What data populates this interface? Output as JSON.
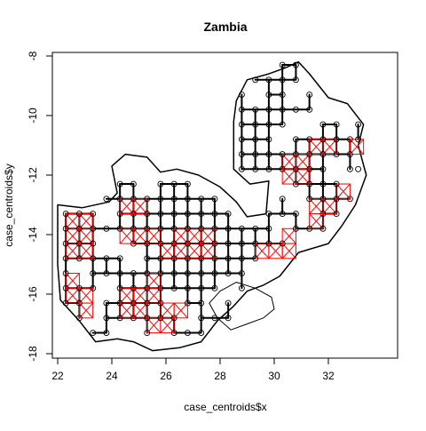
{
  "chart_data": {
    "type": "scatter",
    "title": "Zambia",
    "xlabel": "case_centroids$x",
    "ylabel": "case_centroids$y",
    "xlim": [
      22,
      34
    ],
    "ylim": [
      -18,
      -8
    ],
    "x_ticks": [
      22,
      24,
      26,
      28,
      30,
      32
    ],
    "y_ticks": [
      -18,
      -16,
      -14,
      -12,
      -10,
      -8
    ],
    "box": true,
    "grid": false,
    "legend": "none",
    "point_symbol": "open-circle",
    "colors": {
      "points": "#000000",
      "country_boundary": "#000000",
      "network_links": "#000000",
      "grid_links": "#ff0000"
    },
    "outline": [
      [
        22.0,
        -13.0
      ],
      [
        22.9,
        -13.1
      ],
      [
        23.9,
        -12.9
      ],
      [
        24.2,
        -12.6
      ],
      [
        24.0,
        -11.7
      ],
      [
        24.5,
        -11.3
      ],
      [
        25.3,
        -11.4
      ],
      [
        25.8,
        -11.9
      ],
      [
        26.4,
        -11.8
      ],
      [
        27.2,
        -12.0
      ],
      [
        28.0,
        -12.4
      ],
      [
        28.6,
        -12.9
      ],
      [
        29.0,
        -13.4
      ],
      [
        29.7,
        -13.3
      ],
      [
        29.8,
        -12.2
      ],
      [
        29.1,
        -12.3
      ],
      [
        28.5,
        -11.8
      ],
      [
        28.5,
        -10.2
      ],
      [
        28.6,
        -9.5
      ],
      [
        29.0,
        -8.8
      ],
      [
        29.8,
        -8.6
      ],
      [
        30.4,
        -8.4
      ],
      [
        30.9,
        -8.2
      ],
      [
        31.3,
        -8.6
      ],
      [
        32.0,
        -9.4
      ],
      [
        32.7,
        -9.6
      ],
      [
        33.3,
        -10.3
      ],
      [
        33.1,
        -11.0
      ],
      [
        33.4,
        -12.0
      ],
      [
        33.0,
        -13.0
      ],
      [
        32.5,
        -13.7
      ],
      [
        32.0,
        -14.3
      ],
      [
        30.9,
        -14.6
      ],
      [
        30.2,
        -15.4
      ],
      [
        29.6,
        -15.7
      ],
      [
        29.0,
        -15.9
      ],
      [
        28.5,
        -16.4
      ],
      [
        27.9,
        -16.9
      ],
      [
        27.3,
        -17.6
      ],
      [
        26.5,
        -17.8
      ],
      [
        25.5,
        -17.9
      ],
      [
        24.8,
        -17.6
      ],
      [
        24.2,
        -17.5
      ],
      [
        23.4,
        -17.6
      ],
      [
        22.8,
        -16.9
      ],
      [
        22.1,
        -16.2
      ],
      [
        22.0,
        -15.0
      ],
      [
        22.0,
        -13.0
      ]
    ],
    "extra_region": [
      [
        28.0,
        -15.9
      ],
      [
        28.6,
        -15.6
      ],
      [
        29.3,
        -15.8
      ],
      [
        29.9,
        -16.1
      ],
      [
        30.0,
        -16.5
      ],
      [
        29.6,
        -16.8
      ],
      [
        29.0,
        -17.0
      ],
      [
        28.4,
        -17.2
      ],
      [
        27.9,
        -16.8
      ],
      [
        27.6,
        -16.3
      ],
      [
        28.0,
        -15.9
      ]
    ],
    "x": [
      22.3,
      22.3,
      22.3,
      22.3,
      22.3,
      22.3,
      22.3,
      22.8,
      22.8,
      22.8,
      22.8,
      22.8,
      22.8,
      22.8,
      23.3,
      23.3,
      23.3,
      23.3,
      23.3,
      23.3,
      23.3,
      23.8,
      23.8,
      23.8,
      23.8,
      23.8,
      23.8,
      23.8,
      24.3,
      24.3,
      24.3,
      24.3,
      24.3,
      24.3,
      24.3,
      24.3,
      24.3,
      24.8,
      24.8,
      24.8,
      24.8,
      24.8,
      24.8,
      24.8,
      24.8,
      24.8,
      25.3,
      25.3,
      25.3,
      25.3,
      25.3,
      25.3,
      25.3,
      25.3,
      25.3,
      25.3,
      25.8,
      25.8,
      25.8,
      25.8,
      25.8,
      25.8,
      25.8,
      25.8,
      25.8,
      25.8,
      26.3,
      26.3,
      26.3,
      26.3,
      26.3,
      26.3,
      26.3,
      26.3,
      26.3,
      26.3,
      26.8,
      26.8,
      26.8,
      26.8,
      26.8,
      26.8,
      26.8,
      26.8,
      26.8,
      26.8,
      27.3,
      27.3,
      27.3,
      27.3,
      27.3,
      27.3,
      27.3,
      27.3,
      27.3,
      27.3,
      27.8,
      27.8,
      27.8,
      27.8,
      27.8,
      27.8,
      27.8,
      27.8,
      28.3,
      28.3,
      28.3,
      28.3,
      28.3,
      28.3,
      28.3,
      28.8,
      28.8,
      28.8,
      28.8,
      28.8,
      28.8,
      28.8,
      28.8,
      28.8,
      28.8,
      28.8,
      29.3,
      29.3,
      29.3,
      29.3,
      29.3,
      29.3,
      29.3,
      29.3,
      29.3,
      29.8,
      29.8,
      29.8,
      29.8,
      29.8,
      29.8,
      29.8,
      29.8,
      29.8,
      29.8,
      30.3,
      30.3,
      30.3,
      30.3,
      30.3,
      30.3,
      30.3,
      30.3,
      30.3,
      30.3,
      30.8,
      30.8,
      30.8,
      30.8,
      30.8,
      30.8,
      30.8,
      30.8,
      30.8,
      31.3,
      31.3,
      31.3,
      31.3,
      31.3,
      31.3,
      31.3,
      31.3,
      31.8,
      31.8,
      31.8,
      31.8,
      31.8,
      31.8,
      31.8,
      31.8,
      32.3,
      32.3,
      32.3,
      32.3,
      32.3,
      32.3,
      32.8,
      32.8,
      32.8,
      32.8,
      33.1,
      33.1,
      33.1
    ],
    "y": [
      -13.3,
      -13.8,
      -14.3,
      -14.8,
      -15.3,
      -15.8,
      -16.3,
      -13.3,
      -13.8,
      -14.3,
      -14.8,
      -15.8,
      -16.3,
      -16.8,
      -13.3,
      -13.8,
      -14.3,
      -14.8,
      -15.3,
      -15.8,
      -17.3,
      -12.8,
      -13.8,
      -14.8,
      -15.3,
      -16.3,
      -16.8,
      -17.3,
      -12.3,
      -12.8,
      -13.3,
      -13.8,
      -14.8,
      -15.3,
      -15.8,
      -16.3,
      -16.8,
      -12.3,
      -12.8,
      -13.3,
      -13.8,
      -14.3,
      -15.3,
      -15.8,
      -16.3,
      -16.8,
      -12.8,
      -13.3,
      -13.8,
      -14.3,
      -14.8,
      -15.3,
      -15.8,
      -16.3,
      -16.8,
      -17.3,
      -12.3,
      -12.8,
      -13.3,
      -13.8,
      -14.3,
      -14.8,
      -15.3,
      -15.8,
      -16.3,
      -16.8,
      -12.3,
      -12.8,
      -13.3,
      -13.8,
      -14.3,
      -14.8,
      -15.3,
      -15.8,
      -16.8,
      -17.3,
      -12.3,
      -12.8,
      -13.3,
      -13.8,
      -14.3,
      -14.8,
      -15.3,
      -15.8,
      -16.3,
      -17.3,
      -12.8,
      -13.3,
      -13.8,
      -14.3,
      -14.8,
      -15.3,
      -15.8,
      -16.3,
      -16.8,
      -17.3,
      -12.8,
      -13.3,
      -13.8,
      -14.3,
      -14.8,
      -15.3,
      -15.8,
      -16.8,
      -13.3,
      -13.8,
      -14.3,
      -14.8,
      -15.3,
      -16.3,
      -16.8,
      -9.3,
      -9.8,
      -10.3,
      -10.8,
      -11.3,
      -11.8,
      -13.8,
      -14.3,
      -14.8,
      -15.3,
      -15.8,
      -8.8,
      -9.8,
      -10.3,
      -10.8,
      -11.3,
      -11.8,
      -13.8,
      -14.3,
      -14.8,
      -8.8,
      -9.3,
      -9.8,
      -10.3,
      -10.8,
      -11.3,
      -11.8,
      -13.3,
      -13.8,
      -14.3,
      -8.3,
      -8.8,
      -9.3,
      -9.8,
      -10.3,
      -11.3,
      -11.8,
      -12.8,
      -13.3,
      -14.3,
      -8.3,
      -8.8,
      -9.8,
      -10.8,
      -11.3,
      -11.8,
      -12.3,
      -13.3,
      -13.8,
      -9.3,
      -9.8,
      -10.8,
      -11.3,
      -11.8,
      -12.3,
      -12.8,
      -13.8,
      -10.3,
      -10.8,
      -11.3,
      -11.8,
      -12.3,
      -12.8,
      -13.3,
      -13.8,
      -10.3,
      -10.8,
      -11.3,
      -12.3,
      -12.8,
      -13.3,
      -10.8,
      -11.3,
      -11.8,
      -12.8,
      -10.3,
      -10.8,
      -11.8
    ],
    "dense_red_cells": [
      [
        22.3,
        -13.3
      ],
      [
        22.3,
        -13.8
      ],
      [
        22.3,
        -14.3
      ],
      [
        22.8,
        -13.3
      ],
      [
        22.8,
        -13.8
      ],
      [
        22.8,
        -14.3
      ],
      [
        22.3,
        -15.3
      ],
      [
        22.3,
        -15.8
      ],
      [
        22.8,
        -15.8
      ],
      [
        22.8,
        -16.3
      ],
      [
        24.3,
        -12.8
      ],
      [
        24.8,
        -12.8
      ],
      [
        24.3,
        -13.8
      ],
      [
        24.8,
        -13.8
      ],
      [
        25.3,
        -13.8
      ],
      [
        24.3,
        -15.8
      ],
      [
        24.8,
        -15.8
      ],
      [
        24.3,
        -16.3
      ],
      [
        24.8,
        -16.3
      ],
      [
        25.3,
        -15.3
      ],
      [
        25.3,
        -15.8
      ],
      [
        25.8,
        -14.3
      ],
      [
        26.3,
        -14.3
      ],
      [
        26.3,
        -13.8
      ],
      [
        26.8,
        -13.8
      ],
      [
        26.8,
        -14.3
      ],
      [
        25.8,
        -16.3
      ],
      [
        26.3,
        -16.3
      ],
      [
        25.3,
        -16.8
      ],
      [
        25.8,
        -16.8
      ],
      [
        27.3,
        -13.8
      ],
      [
        27.3,
        -14.3
      ],
      [
        29.3,
        -14.3
      ],
      [
        29.8,
        -14.3
      ],
      [
        30.3,
        -13.8
      ],
      [
        30.3,
        -14.3
      ],
      [
        30.3,
        -11.3
      ],
      [
        30.8,
        -11.3
      ],
      [
        30.3,
        -11.8
      ],
      [
        30.8,
        -11.8
      ],
      [
        31.3,
        -10.8
      ],
      [
        31.8,
        -10.8
      ],
      [
        31.3,
        -12.8
      ],
      [
        31.3,
        -13.3
      ],
      [
        31.8,
        -12.8
      ],
      [
        32.3,
        -12.3
      ],
      [
        32.8,
        -10.8
      ]
    ]
  }
}
